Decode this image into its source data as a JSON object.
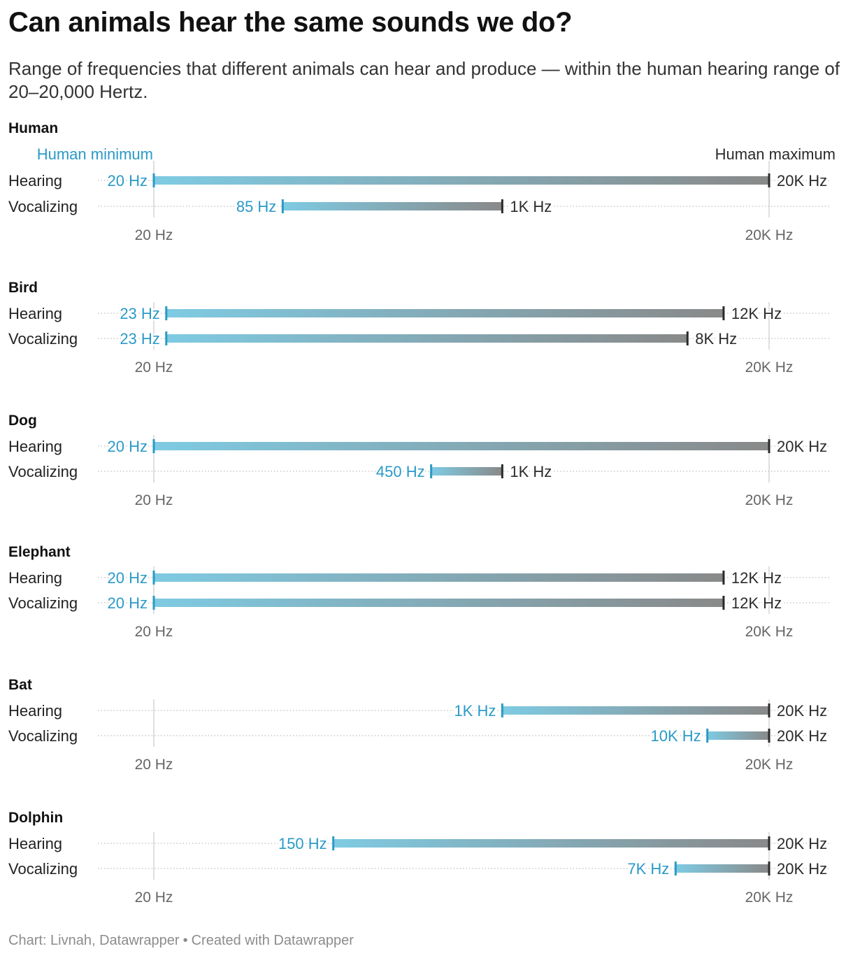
{
  "header": {
    "title": "Can animals hear the same sounds we do?",
    "subtitle": "Range of frequencies that different animals can hear and produce — within the human hearing range of 20–20,000 Hertz."
  },
  "footer": {
    "source": "Chart: Livnah, Datawrapper",
    "separator": "•",
    "credit": "Created with Datawrapper"
  },
  "colors": {
    "range_start": "#7ecbe3",
    "range_end": "#898989",
    "min_label": "#2a9ac7",
    "max_label": "#2b2b2b",
    "gridline": "#d4d4d4",
    "dotted": "#c8c8c8",
    "axis_text": "#666666"
  },
  "chart_data": {
    "type": "range",
    "scale": "log",
    "x_domain": [
      20,
      20000
    ],
    "x_ticks": [
      {
        "value": 20,
        "label": "20 Hz"
      },
      {
        "value": 20000,
        "label": "20K Hz"
      }
    ],
    "reference_annotations": [
      {
        "value": 20,
        "label": "Human minimum"
      },
      {
        "value": 20000,
        "label": "Human maximum"
      }
    ],
    "panels": [
      {
        "name": "Human",
        "rows": [
          {
            "label": "Hearing",
            "min": 20,
            "max": 20000,
            "min_label": "20 Hz",
            "max_label": "20K Hz"
          },
          {
            "label": "Vocalizing",
            "min": 85,
            "max": 1000,
            "min_label": "85 Hz",
            "max_label": "1K Hz"
          }
        ]
      },
      {
        "name": "Bird",
        "rows": [
          {
            "label": "Hearing",
            "min": 23,
            "max": 12000,
            "min_label": "23 Hz",
            "max_label": "12K Hz"
          },
          {
            "label": "Vocalizing",
            "min": 23,
            "max": 8000,
            "min_label": "23 Hz",
            "max_label": "8K Hz"
          }
        ]
      },
      {
        "name": "Dog",
        "rows": [
          {
            "label": "Hearing",
            "min": 20,
            "max": 20000,
            "min_label": "20 Hz",
            "max_label": "20K Hz"
          },
          {
            "label": "Vocalizing",
            "min": 450,
            "max": 1000,
            "min_label": "450 Hz",
            "max_label": "1K Hz"
          }
        ]
      },
      {
        "name": "Elephant",
        "rows": [
          {
            "label": "Hearing",
            "min": 20,
            "max": 12000,
            "min_label": "20 Hz",
            "max_label": "12K Hz"
          },
          {
            "label": "Vocalizing",
            "min": 20,
            "max": 12000,
            "min_label": "20 Hz",
            "max_label": "12K Hz"
          }
        ]
      },
      {
        "name": "Bat",
        "rows": [
          {
            "label": "Hearing",
            "min": 1000,
            "max": 20000,
            "min_label": "1K Hz",
            "max_label": "20K Hz"
          },
          {
            "label": "Vocalizing",
            "min": 10000,
            "max": 20000,
            "min_label": "10K Hz",
            "max_label": "20K Hz"
          }
        ]
      },
      {
        "name": "Dolphin",
        "rows": [
          {
            "label": "Hearing",
            "min": 150,
            "max": 20000,
            "min_label": "150 Hz",
            "max_label": "20K Hz"
          },
          {
            "label": "Vocalizing",
            "min": 7000,
            "max": 20000,
            "min_label": "7K Hz",
            "max_label": "20K Hz"
          }
        ]
      }
    ]
  }
}
